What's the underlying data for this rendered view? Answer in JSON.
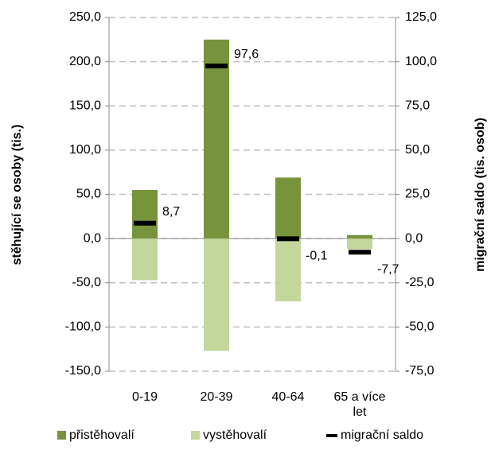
{
  "chart_data": {
    "type": "bar",
    "categories": [
      "0-19",
      "20-39",
      "40-64",
      "65 a více let"
    ],
    "y_label": "stěhující se osoby  (tis.)",
    "y2_label": "migrační saldo (tis. osob)",
    "series": [
      {
        "name": "přistěhovalí",
        "color": "#77933c",
        "values": [
          55,
          225,
          69,
          4
        ]
      },
      {
        "name": "vystěhovalí",
        "color": "#c3d69b",
        "values": [
          -47,
          -127,
          -71,
          -12
        ]
      },
      {
        "name": "migrační saldo",
        "color": "#000000",
        "axis": "y2",
        "values": [
          8.7,
          97.6,
          -0.1,
          -7.7
        ],
        "value_labels": [
          "8,7",
          "97,6",
          "-0,1",
          "-7,7"
        ]
      }
    ],
    "ylim": [
      -150,
      250
    ],
    "yticks": [
      {
        "value": -150,
        "label": "-150,0"
      },
      {
        "value": -100,
        "label": "-100,0"
      },
      {
        "value": -50,
        "label": "-50,0"
      },
      {
        "value": 0,
        "label": "0,0"
      },
      {
        "value": 50,
        "label": "50,0"
      },
      {
        "value": 100,
        "label": "100,0"
      },
      {
        "value": 150,
        "label": "150,0"
      },
      {
        "value": 200,
        "label": "200,0"
      },
      {
        "value": 250,
        "label": "250,0"
      }
    ],
    "y2lim": [
      -75,
      125
    ],
    "y2ticks": [
      {
        "value": -75,
        "label": "-75,0"
      },
      {
        "value": -50,
        "label": "-50,0"
      },
      {
        "value": -25,
        "label": "-25,0"
      },
      {
        "value": 0,
        "label": "0,0"
      },
      {
        "value": 25,
        "label": "25,0"
      },
      {
        "value": 50,
        "label": "50,0"
      },
      {
        "value": 75,
        "label": "75,0"
      },
      {
        "value": 100,
        "label": "100,0"
      },
      {
        "value": 125,
        "label": "125,0"
      }
    ],
    "grid": true,
    "legend": "bottom"
  }
}
